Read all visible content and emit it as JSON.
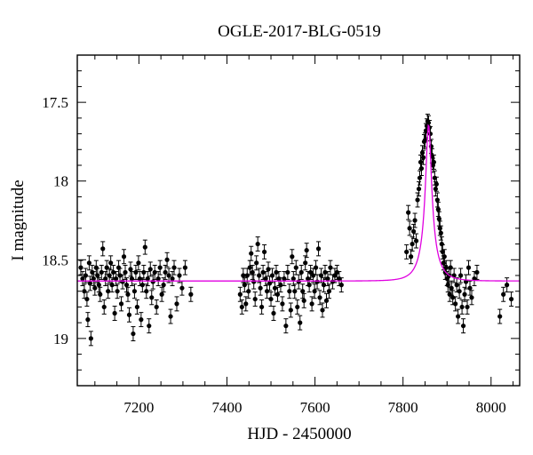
{
  "chart_data": {
    "type": "scatter",
    "title": "OGLE-2017-BLG-0519",
    "xlabel": "HJD - 2450000",
    "ylabel": "I magnitude",
    "xlim": [
      7060,
      8065
    ],
    "ylim": [
      19.3,
      17.2
    ],
    "y_inverted": true,
    "xticks": [
      7200,
      7400,
      7600,
      7800,
      8000
    ],
    "yticks": [
      17.5,
      18,
      18.5,
      19
    ],
    "ytick_labels": [
      "17.5",
      "18",
      "18.5",
      "19"
    ],
    "grid": false,
    "colors": {
      "points": "#000000",
      "model": "#e000e0",
      "axes": "#000000"
    },
    "model": {
      "name": "",
      "t0": 7858,
      "baseline": 18.635,
      "peak": 17.64,
      "tE": 33
    },
    "series": [
      {
        "name": "",
        "errorbar": 0.045,
        "points": [
          [
            7068,
            18.55
          ],
          [
            7072,
            18.62
          ],
          [
            7076,
            18.7
          ],
          [
            7079,
            18.6
          ],
          [
            7082,
            18.75
          ],
          [
            7084,
            18.88
          ],
          [
            7087,
            18.52
          ],
          [
            7089,
            18.65
          ],
          [
            7091,
            19.0
          ],
          [
            7094,
            18.58
          ],
          [
            7097,
            18.62
          ],
          [
            7100,
            18.68
          ],
          [
            7103,
            18.55
          ],
          [
            7106,
            18.6
          ],
          [
            7109,
            18.66
          ],
          [
            7112,
            18.72
          ],
          [
            7115,
            18.58
          ],
          [
            7118,
            18.43
          ],
          [
            7121,
            18.8
          ],
          [
            7124,
            18.62
          ],
          [
            7127,
            18.55
          ],
          [
            7130,
            18.7
          ],
          [
            7133,
            18.6
          ],
          [
            7136,
            18.52
          ],
          [
            7139,
            18.66
          ],
          [
            7142,
            18.58
          ],
          [
            7145,
            18.84
          ],
          [
            7148,
            18.62
          ],
          [
            7151,
            18.7
          ],
          [
            7154,
            18.55
          ],
          [
            7157,
            18.6
          ],
          [
            7160,
            18.78
          ],
          [
            7163,
            18.64
          ],
          [
            7166,
            18.48
          ],
          [
            7169,
            18.58
          ],
          [
            7172,
            18.66
          ],
          [
            7175,
            18.72
          ],
          [
            7178,
            18.85
          ],
          [
            7181,
            18.56
          ],
          [
            7184,
            18.62
          ],
          [
            7187,
            18.97
          ],
          [
            7190,
            18.7
          ],
          [
            7193,
            18.58
          ],
          [
            7196,
            18.8
          ],
          [
            7199,
            18.52
          ],
          [
            7202,
            18.62
          ],
          [
            7205,
            18.88
          ],
          [
            7208,
            18.66
          ],
          [
            7211,
            18.58
          ],
          [
            7214,
            18.42
          ],
          [
            7217,
            18.7
          ],
          [
            7220,
            18.62
          ],
          [
            7223,
            18.92
          ],
          [
            7226,
            18.56
          ],
          [
            7229,
            18.74
          ],
          [
            7232,
            18.64
          ],
          [
            7236,
            18.58
          ],
          [
            7240,
            18.8
          ],
          [
            7244,
            18.62
          ],
          [
            7248,
            18.55
          ],
          [
            7252,
            18.72
          ],
          [
            7256,
            18.66
          ],
          [
            7260,
            18.58
          ],
          [
            7264,
            18.5
          ],
          [
            7268,
            18.6
          ],
          [
            7272,
            18.86
          ],
          [
            7276,
            18.62
          ],
          [
            7280,
            18.55
          ],
          [
            7286,
            18.78
          ],
          [
            7292,
            18.6
          ],
          [
            7298,
            18.68
          ],
          [
            7305,
            18.55
          ],
          [
            7318,
            18.72
          ],
          [
            7430,
            18.72
          ],
          [
            7434,
            18.8
          ],
          [
            7437,
            18.6
          ],
          [
            7440,
            18.66
          ],
          [
            7443,
            18.78
          ],
          [
            7446,
            18.6
          ],
          [
            7449,
            18.7
          ],
          [
            7452,
            18.55
          ],
          [
            7455,
            18.46
          ],
          [
            7458,
            18.58
          ],
          [
            7461,
            18.64
          ],
          [
            7464,
            18.75
          ],
          [
            7467,
            18.52
          ],
          [
            7470,
            18.4
          ],
          [
            7473,
            18.6
          ],
          [
            7476,
            18.68
          ],
          [
            7479,
            18.8
          ],
          [
            7482,
            18.58
          ],
          [
            7485,
            18.45
          ],
          [
            7488,
            18.62
          ],
          [
            7491,
            18.7
          ],
          [
            7494,
            18.56
          ],
          [
            7497,
            18.65
          ],
          [
            7500,
            18.75
          ],
          [
            7503,
            18.6
          ],
          [
            7506,
            18.84
          ],
          [
            7509,
            18.68
          ],
          [
            7512,
            18.58
          ],
          [
            7515,
            18.72
          ],
          [
            7518,
            18.62
          ],
          [
            7522,
            18.66
          ],
          [
            7526,
            18.78
          ],
          [
            7530,
            18.62
          ],
          [
            7534,
            18.92
          ],
          [
            7538,
            18.58
          ],
          [
            7542,
            18.7
          ],
          [
            7545,
            18.82
          ],
          [
            7548,
            18.48
          ],
          [
            7551,
            18.62
          ],
          [
            7554,
            18.7
          ],
          [
            7557,
            18.55
          ],
          [
            7560,
            18.8
          ],
          [
            7563,
            18.64
          ],
          [
            7566,
            18.9
          ],
          [
            7569,
            18.58
          ],
          [
            7572,
            18.7
          ],
          [
            7575,
            18.76
          ],
          [
            7578,
            18.52
          ],
          [
            7581,
            18.44
          ],
          [
            7584,
            18.62
          ],
          [
            7587,
            18.66
          ],
          [
            7590,
            18.58
          ],
          [
            7593,
            18.78
          ],
          [
            7596,
            18.6
          ],
          [
            7599,
            18.7
          ],
          [
            7602,
            18.55
          ],
          [
            7605,
            18.64
          ],
          [
            7608,
            18.43
          ],
          [
            7611,
            18.74
          ],
          [
            7614,
            18.6
          ],
          [
            7617,
            18.82
          ],
          [
            7620,
            18.66
          ],
          [
            7623,
            18.58
          ],
          [
            7626,
            18.76
          ],
          [
            7629,
            18.62
          ],
          [
            7632,
            18.7
          ],
          [
            7635,
            18.55
          ],
          [
            7640,
            18.64
          ],
          [
            7645,
            18.6
          ],
          [
            7650,
            18.58
          ],
          [
            7655,
            18.62
          ],
          [
            7660,
            18.66
          ],
          [
            7808,
            18.45
          ],
          [
            7812,
            18.2
          ],
          [
            7815,
            18.3
          ],
          [
            7818,
            18.48
          ],
          [
            7821,
            18.4
          ],
          [
            7824,
            18.32
          ],
          [
            7827,
            18.25
          ],
          [
            7830,
            18.38
          ],
          [
            7833,
            18.12
          ],
          [
            7836,
            18.05
          ],
          [
            7838,
            17.98
          ],
          [
            7840,
            17.88
          ],
          [
            7842,
            17.92
          ],
          [
            7844,
            17.82
          ],
          [
            7846,
            17.85
          ],
          [
            7848,
            17.75
          ],
          [
            7850,
            17.74
          ],
          [
            7852,
            17.68
          ],
          [
            7854,
            17.65
          ],
          [
            7856,
            17.62
          ],
          [
            7858,
            17.63
          ],
          [
            7860,
            17.66
          ],
          [
            7862,
            17.7
          ],
          [
            7864,
            17.78
          ],
          [
            7866,
            17.84
          ],
          [
            7868,
            17.9
          ],
          [
            7870,
            17.88
          ],
          [
            7872,
            17.98
          ],
          [
            7874,
            18.05
          ],
          [
            7876,
            18.02
          ],
          [
            7878,
            18.12
          ],
          [
            7880,
            18.18
          ],
          [
            7882,
            18.24
          ],
          [
            7884,
            18.3
          ],
          [
            7886,
            18.33
          ],
          [
            7888,
            18.4
          ],
          [
            7890,
            18.45
          ],
          [
            7892,
            18.52
          ],
          [
            7894,
            18.48
          ],
          [
            7896,
            18.58
          ],
          [
            7898,
            18.55
          ],
          [
            7900,
            18.62
          ],
          [
            7902,
            18.66
          ],
          [
            7904,
            18.6
          ],
          [
            7906,
            18.72
          ],
          [
            7908,
            18.55
          ],
          [
            7910,
            18.68
          ],
          [
            7913,
            18.74
          ],
          [
            7916,
            18.6
          ],
          [
            7919,
            18.78
          ],
          [
            7922,
            18.66
          ],
          [
            7925,
            18.86
          ],
          [
            7928,
            18.7
          ],
          [
            7931,
            18.6
          ],
          [
            7934,
            18.8
          ],
          [
            7937,
            18.92
          ],
          [
            7940,
            18.72
          ],
          [
            7943,
            18.64
          ],
          [
            7946,
            18.8
          ],
          [
            7949,
            18.55
          ],
          [
            7952,
            18.68
          ],
          [
            7956,
            18.74
          ],
          [
            7962,
            18.62
          ],
          [
            7968,
            18.58
          ],
          [
            8020,
            18.86
          ],
          [
            8028,
            18.72
          ],
          [
            8036,
            18.66
          ],
          [
            8046,
            18.75
          ]
        ]
      }
    ]
  }
}
